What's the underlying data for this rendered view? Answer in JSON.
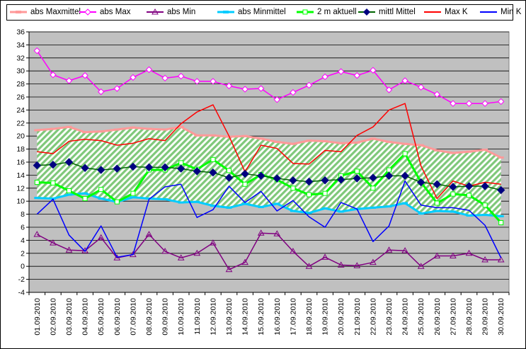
{
  "chart_data": {
    "type": "line",
    "categories": [
      "01.09.2010",
      "02.09.2010",
      "03.09.2010",
      "04.09.2010",
      "05.09.2010",
      "06.09.2010",
      "07.09.2010",
      "08.09.2010",
      "09.09.2010",
      "10.09.2010",
      "11.09.2010",
      "12.09.2010",
      "13.09.2010",
      "14.09.2010",
      "15.09.2010",
      "16.09.2010",
      "17.09.2010",
      "18.09.2010",
      "19.09.2010",
      "20.09.2010",
      "21.09.2010",
      "22.09.2010",
      "23.09.2010",
      "24.09.2010",
      "25.09.2010",
      "26.09.2010",
      "27.09.2010",
      "28.09.2010",
      "29.09.2010",
      "30.09.2010"
    ],
    "ylim": [
      -4,
      36
    ],
    "yticks": [
      -4,
      -2,
      0,
      2,
      4,
      6,
      8,
      10,
      12,
      14,
      16,
      18,
      20,
      22,
      24,
      26,
      28,
      30,
      32,
      34,
      36
    ],
    "grid": true,
    "legend_position": "top",
    "band": {
      "upper": "abs Maxmittel",
      "lower": "abs Minmittel",
      "fill": "#b8e0a0"
    },
    "series": [
      {
        "name": "abs Maxmittel",
        "color": "#ff9999",
        "marker": "dash",
        "width": 3,
        "values": [
          20.9,
          21.1,
          21.4,
          20.6,
          20.7,
          21.0,
          21.3,
          21.1,
          21.0,
          21.4,
          20.1,
          20.1,
          19.9,
          20.0,
          19.6,
          19.1,
          18.8,
          19.3,
          19.2,
          18.9,
          19.0,
          19.6,
          19.1,
          18.8,
          18.6,
          17.8,
          17.4,
          17.6,
          17.9,
          16.7
        ]
      },
      {
        "name": "abs Max",
        "color": "#ff00ff",
        "marker": "diamond-open",
        "width": 1.5,
        "values": [
          33.1,
          29.4,
          28.5,
          29.3,
          26.8,
          27.3,
          29.0,
          30.2,
          28.9,
          29.2,
          28.4,
          28.4,
          27.7,
          27.2,
          27.3,
          25.6,
          26.7,
          27.8,
          29.1,
          29.9,
          29.3,
          30.1,
          27.1,
          28.5,
          27.5,
          26.4,
          25.0,
          25.0,
          25.0,
          25.3
        ]
      },
      {
        "name": "abs Min",
        "color": "#800080",
        "marker": "triangle-open",
        "width": 1.5,
        "values": [
          4.9,
          3.6,
          2.5,
          2.4,
          4.4,
          1.3,
          1.8,
          4.9,
          2.3,
          1.3,
          2.0,
          3.6,
          -0.5,
          0.6,
          5.1,
          5.0,
          2.3,
          0.0,
          1.4,
          0.2,
          0.1,
          0.6,
          2.5,
          2.4,
          0.0,
          1.6,
          1.6,
          2.0,
          1.0,
          1.0
        ]
      },
      {
        "name": "abs Minmittel",
        "color": "#00ccff",
        "marker": "dash",
        "width": 3,
        "values": [
          10.5,
          10.4,
          11.0,
          11.2,
          10.4,
          9.9,
          10.6,
          10.4,
          10.3,
          9.8,
          9.9,
          9.3,
          9.0,
          9.6,
          9.1,
          9.6,
          8.5,
          8.2,
          8.9,
          8.4,
          8.8,
          9.0,
          9.2,
          9.7,
          8.1,
          8.5,
          8.4,
          7.8,
          7.9,
          7.7
        ]
      },
      {
        "name": "2 m aktuell",
        "color": "#00ff00",
        "marker": "square-open",
        "width": 3,
        "values": [
          12.9,
          12.8,
          11.6,
          10.4,
          11.8,
          9.9,
          11.2,
          14.8,
          14.8,
          15.9,
          14.9,
          16.4,
          14.7,
          12.6,
          14.1,
          13.3,
          12.0,
          11.0,
          11.2,
          13.9,
          14.6,
          12.0,
          14.8,
          17.3,
          12.9,
          9.7,
          11.1,
          10.9,
          9.4,
          6.7
        ]
      },
      {
        "name": "mittl Mittel",
        "color": "#006400",
        "marker": "diamond-filled",
        "width": 1.5,
        "values": [
          15.5,
          15.6,
          16.0,
          15.1,
          14.8,
          15.0,
          15.3,
          15.2,
          15.2,
          15.0,
          14.6,
          14.4,
          13.6,
          14.2,
          13.9,
          13.5,
          13.2,
          13.0,
          13.2,
          13.3,
          13.5,
          13.6,
          13.9,
          13.9,
          12.9,
          12.6,
          12.2,
          12.3,
          12.3,
          11.7
        ]
      },
      {
        "name": "Max K",
        "color": "#ff0000",
        "marker": "none",
        "width": 1.5,
        "values": [
          17.6,
          17.3,
          19.2,
          19.5,
          19.3,
          18.6,
          18.9,
          19.6,
          19.3,
          21.9,
          23.7,
          24.8,
          20.0,
          14.5,
          18.6,
          18.1,
          15.8,
          15.7,
          17.8,
          17.6,
          20.1,
          21.4,
          24.0,
          25.0,
          15.4,
          10.4,
          13.1,
          12.3,
          12.9,
          12.6
        ]
      },
      {
        "name": "Min K",
        "color": "#0000ff",
        "marker": "none",
        "width": 1.5,
        "values": [
          8.0,
          10.3,
          4.8,
          2.3,
          6.2,
          1.4,
          1.8,
          10.3,
          12.2,
          12.6,
          7.5,
          8.7,
          12.3,
          9.8,
          11.5,
          8.5,
          10.1,
          7.6,
          6.0,
          9.8,
          8.8,
          3.8,
          6.2,
          13.1,
          9.4,
          9.0,
          9.0,
          8.6,
          6.3,
          1.3
        ]
      }
    ]
  }
}
